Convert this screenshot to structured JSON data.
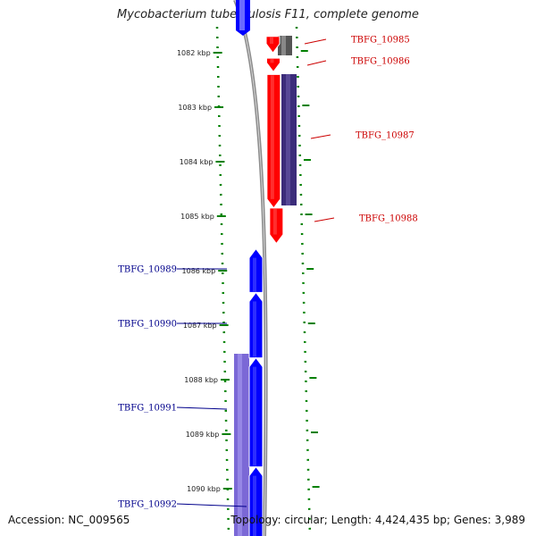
{
  "title": "Mycobacterium tuberculosis F11, complete genome",
  "footer": {
    "accession": "Accession: NC_009565",
    "topology": "Topology: circular; Length: 4,424,435 bp; Genes: 3,989"
  },
  "ruler": {
    "ticks": [
      {
        "label": "1082 kbp",
        "kbp": 1082
      },
      {
        "label": "1083 kbp",
        "kbp": 1083
      },
      {
        "label": "1084 kbp",
        "kbp": 1084
      },
      {
        "label": "1085 kbp",
        "kbp": 1085
      },
      {
        "label": "1086 kbp",
        "kbp": 1086
      },
      {
        "label": "1087 kbp",
        "kbp": 1087
      },
      {
        "label": "1088 kbp",
        "kbp": 1088
      },
      {
        "label": "1089 kbp",
        "kbp": 1089
      },
      {
        "label": "1090 kbp",
        "kbp": 1090
      }
    ]
  },
  "genes": [
    {
      "name": "TBFG_10985",
      "strand": "forward",
      "start_kbp": 1081.7,
      "end_kbp": 1082.0
    },
    {
      "name": "TBFG_10986",
      "strand": "forward",
      "start_kbp": 1082.1,
      "end_kbp": 1082.35
    },
    {
      "name": "TBFG_10987",
      "strand": "forward",
      "start_kbp": 1082.4,
      "end_kbp": 1084.85
    },
    {
      "name": "TBFG_10988",
      "strand": "forward",
      "start_kbp": 1084.85,
      "end_kbp": 1085.5
    },
    {
      "name": "TBFG_10989",
      "strand": "reverse",
      "start_kbp": 1085.6,
      "end_kbp": 1086.4
    },
    {
      "name": "TBFG_10990",
      "strand": "reverse",
      "start_kbp": 1086.4,
      "end_kbp": 1087.6
    },
    {
      "name": "TBFG_10991",
      "strand": "reverse",
      "start_kbp": 1087.6,
      "end_kbp": 1089.6
    },
    {
      "name": "TBFG_10992",
      "strand": "reverse",
      "start_kbp": 1089.6,
      "end_kbp": 1090.9
    }
  ],
  "colors": {
    "forward_gene": "#ff0000",
    "reverse_gene": "#0000ff",
    "forward_cds": "#3b2c7a",
    "reverse_cds": "#7b68d6",
    "other_feature": "#555555",
    "ruler_dots": "#008000",
    "backbone": "#888888",
    "forward_label": "#cc0000",
    "reverse_label": "#00008b"
  }
}
